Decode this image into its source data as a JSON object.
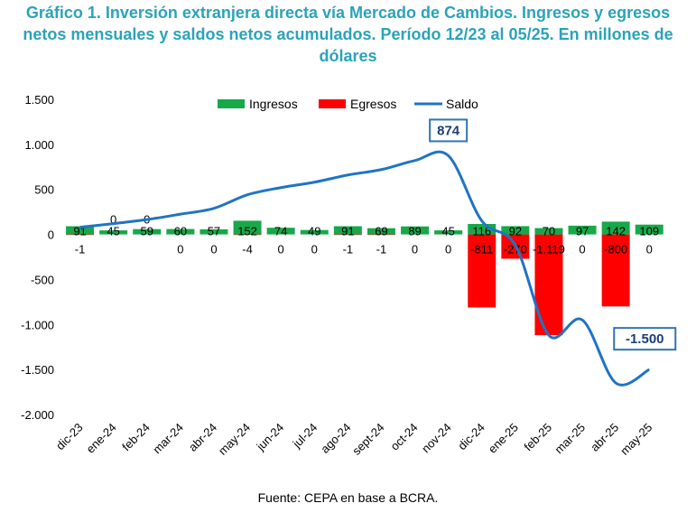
{
  "title": "Gráfico 1. Inversión extranjera directa vía Mercado de Cambios. Ingresos y egresos netos mensuales y saldos netos acumulados. Período 12/23 al 05/25. En millones de dólares",
  "source": "Fuente: CEPA en base a BCRA.",
  "colors": {
    "ingresos": "#17a84a",
    "egresos": "#ff0000",
    "saldo": "#1f74c5",
    "callout_border": "#2e75b6",
    "title": "#2ba3b8"
  },
  "chart_data": {
    "type": "bar",
    "categories": [
      "dic-23",
      "ene-24",
      "feb-24",
      "mar-24",
      "abr-24",
      "may-24",
      "jun-24",
      "jul-24",
      "ago-24",
      "sept-24",
      "oct-24",
      "nov-24",
      "dic-24",
      "ene-25",
      "feb-25",
      "mar-25",
      "abr-25",
      "may-25"
    ],
    "series": [
      {
        "name": "Ingresos",
        "type": "bar",
        "values": [
          91,
          45,
          59,
          60,
          57,
          152,
          74,
          49,
          91,
          69,
          89,
          45,
          116,
          92,
          70,
          97,
          142,
          109
        ]
      },
      {
        "name": "Egresos",
        "type": "bar",
        "values": [
          -1,
          0,
          0,
          0,
          0,
          -4,
          0,
          0,
          -1,
          -1,
          0,
          0,
          -811,
          -270,
          -1119,
          0,
          -800,
          0
        ],
        "labels": [
          "-1",
          "0",
          "0",
          "0",
          "0",
          "-4",
          "0",
          "0",
          "-1",
          "-1",
          "0",
          "0",
          "-811",
          "-270",
          "-1.119",
          "0",
          "-800",
          "0"
        ]
      },
      {
        "name": "Saldo",
        "type": "line",
        "values": [
          80,
          120,
          165,
          225,
          290,
          440,
          520,
          580,
          660,
          720,
          820,
          874,
          150,
          -120,
          -1120,
          -950,
          -1650,
          -1500
        ]
      }
    ],
    "callouts": [
      {
        "category": "nov-24",
        "text": "874"
      },
      {
        "category": "may-25",
        "text": "-1.500"
      }
    ],
    "ylim": [
      -2000,
      1500
    ],
    "yticks": [
      1500,
      1000,
      500,
      0,
      -500,
      -1000,
      -1500,
      -2000
    ],
    "ytick_labels": [
      "1.500",
      "1.000",
      "500",
      "0",
      "-500",
      "-1.000",
      "-1.500",
      "-2.000"
    ],
    "legend": "top-center",
    "grid": false
  }
}
